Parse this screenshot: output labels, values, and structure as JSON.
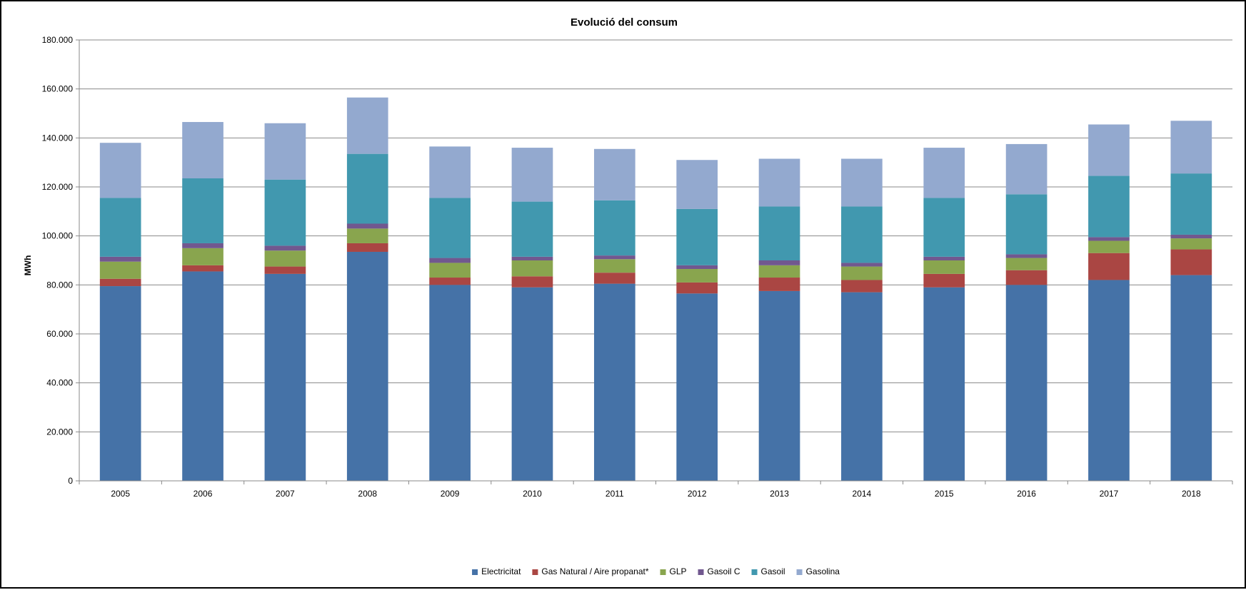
{
  "chart_data": {
    "type": "bar",
    "stacked": true,
    "title": "Evolució del consum",
    "xlabel": "",
    "ylabel": "MWh",
    "ylim": [
      0,
      180000
    ],
    "y_ticks": [
      0,
      20000,
      40000,
      60000,
      80000,
      100000,
      120000,
      140000,
      160000,
      180000
    ],
    "y_tick_labels": [
      "0",
      "20.000",
      "40.000",
      "60.000",
      "80.000",
      "100.000",
      "120.000",
      "140.000",
      "160.000",
      "180.000"
    ],
    "grid": true,
    "legend_position": "bottom",
    "categories": [
      "2005",
      "2006",
      "2007",
      "2008",
      "2009",
      "2010",
      "2011",
      "2012",
      "2013",
      "2014",
      "2015",
      "2016",
      "2017",
      "2018"
    ],
    "series": [
      {
        "name": "Electricitat",
        "color": "#4572a7",
        "values": [
          79500,
          85500,
          84500,
          93500,
          80000,
          79000,
          80500,
          76500,
          77500,
          77000,
          79000,
          80000,
          82000,
          84000
        ]
      },
      {
        "name": "Gas Natural / Aire propanat*",
        "color": "#aa4643",
        "values": [
          3000,
          2500,
          3000,
          3500,
          3000,
          4500,
          4500,
          4500,
          5500,
          5000,
          5500,
          6000,
          11000,
          10500
        ]
      },
      {
        "name": "GLP",
        "color": "#89a54e",
        "values": [
          7000,
          7000,
          6500,
          6000,
          6000,
          6500,
          5500,
          5500,
          5000,
          5500,
          5500,
          5000,
          5000,
          4500
        ]
      },
      {
        "name": "Gasoil C",
        "color": "#71588f",
        "values": [
          2000,
          2000,
          2000,
          2000,
          2000,
          1500,
          1500,
          1500,
          2000,
          1500,
          1500,
          1500,
          1500,
          1500
        ]
      },
      {
        "name": "Gasoil",
        "color": "#4198af",
        "values": [
          24000,
          26500,
          27000,
          28500,
          24500,
          22500,
          22500,
          23000,
          22000,
          23000,
          24000,
          24500,
          25000,
          25000
        ]
      },
      {
        "name": "Gasolina",
        "color": "#93a9cf",
        "values": [
          22500,
          23000,
          23000,
          23000,
          21000,
          22000,
          21000,
          20000,
          19500,
          19500,
          20500,
          20500,
          21000,
          21500
        ]
      }
    ]
  }
}
